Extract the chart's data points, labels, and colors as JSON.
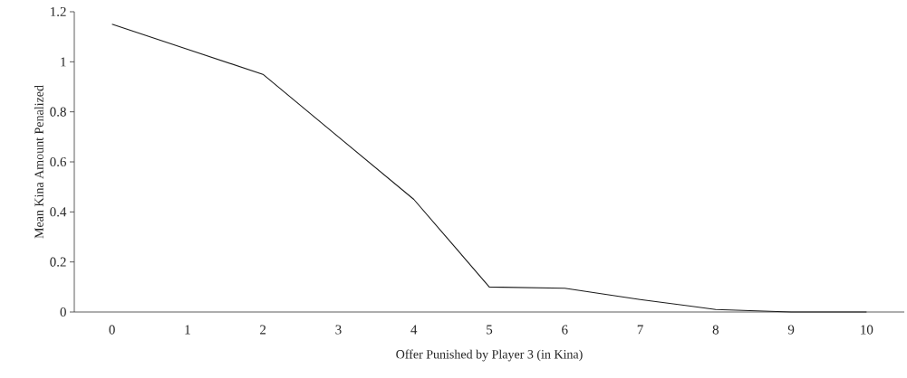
{
  "chart_data": {
    "type": "line",
    "xlabel": "Offer Punished by Player 3 (in Kina)",
    "ylabel": "Mean Kina Amount Penalized",
    "categories": [
      "0",
      "1",
      "2",
      "3",
      "4",
      "5",
      "6",
      "7",
      "8",
      "9",
      "10"
    ],
    "series": [
      {
        "color": "#1a1a1a",
        "values": [
          1.15,
          1.05,
          0.95,
          0.7,
          0.45,
          0.1,
          0.095,
          0.05,
          0.01,
          0,
          0
        ]
      }
    ],
    "ylim": [
      0,
      1.2
    ],
    "yticks": [
      0,
      0.2,
      0.4,
      0.6,
      0.8,
      1,
      1.2
    ],
    "marker": "none",
    "line_style": "solid"
  }
}
